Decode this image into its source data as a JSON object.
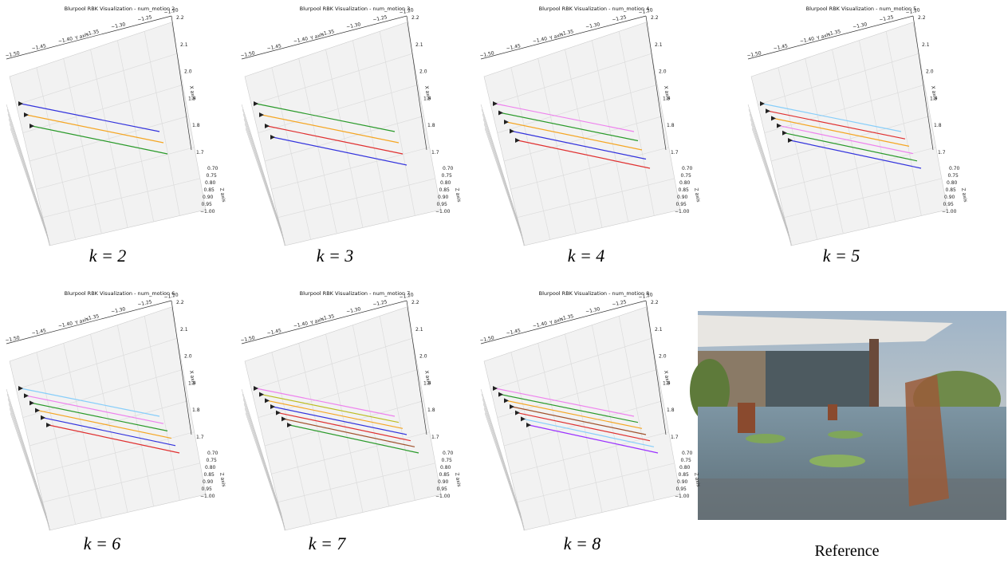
{
  "axes": {
    "y_label": "Y axis",
    "x_label": "X axis",
    "z_label": "Z axis",
    "y_ticks": [
      "−1.50",
      "−1.45",
      "−1.40",
      "−1.35",
      "−1.30",
      "−1.25",
      "−1.20"
    ],
    "x_ticks": [
      "2.2",
      "2.1",
      "2.0",
      "1.9",
      "1.8",
      "1.7"
    ],
    "z_ticks": [
      "0.70",
      "0.75",
      "0.80",
      "0.85",
      "0.90",
      "0.95",
      "−1.00"
    ]
  },
  "panels": [
    {
      "title": "Blurpool RBK Visualization - num_motion 2",
      "caption": "k = 2",
      "line_colors": [
        "#3333dd",
        "#f5a623",
        "#2a9a2a"
      ]
    },
    {
      "title": "Blurpool RBK Visualization - num_motion 3",
      "caption": "k = 3",
      "line_colors": [
        "#2a9a2a",
        "#f5a623",
        "#e03030",
        "#3333dd"
      ]
    },
    {
      "title": "Blurpool RBK Visualization - num_motion 4",
      "caption": "k = 4",
      "line_colors": [
        "#ee82ee",
        "#2a9a2a",
        "#f5a623",
        "#3333dd",
        "#e03030"
      ]
    },
    {
      "title": "Blurpool RBK Visualization - num_motion 5",
      "caption": "k = 5",
      "line_colors": [
        "#87cefa",
        "#e03030",
        "#f5a623",
        "#ee82ee",
        "#2a9a2a",
        "#3333dd"
      ]
    },
    {
      "title": "Blurpool RBK Visualization - num_motion 6",
      "caption": "k = 6",
      "line_colors": [
        "#87cefa",
        "#ee82ee",
        "#2a9a2a",
        "#f5a623",
        "#3333dd",
        "#e03030"
      ]
    },
    {
      "title": "Blurpool RBK Visualization - num_motion 7",
      "caption": "k = 7",
      "line_colors": [
        "#ee82ee",
        "#bcbd22",
        "#f5a623",
        "#3333dd",
        "#e03030",
        "#a0522d",
        "#2a9a2a"
      ]
    },
    {
      "title": "Blurpool RBK Visualization - num_motion 8",
      "caption": "k = 8",
      "line_colors": [
        "#ee82ee",
        "#2a9a2a",
        "#f5a623",
        "#a0522d",
        "#e03030",
        "#87cefa",
        "#9b30ff"
      ]
    }
  ],
  "reference": {
    "caption": "Reference"
  }
}
